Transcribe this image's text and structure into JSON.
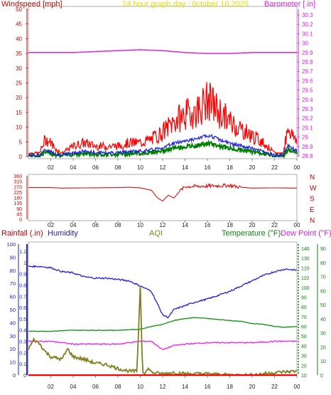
{
  "colors": {
    "wind": "#ff0000",
    "gust_avg": "#2020e0",
    "wind_min": "#008000",
    "barometer": "#e020e0",
    "direction": "#e01010",
    "rain": "#ff0000",
    "humidity": "#2020e0",
    "aqi": "#808020",
    "temperature": "#109010",
    "dewpoint": "#f020f0",
    "title": "#e0e000",
    "axis_blue": "#3030c0"
  },
  "top_panel": {
    "title": "24 hour graph day : 0ctober 10,2025",
    "left_label": "Windspeed [mph]",
    "right_label": "Barometer [.in]",
    "left_ticks": [
      "50",
      "45",
      "40",
      "35",
      "30",
      "25",
      "20",
      "15",
      "10",
      "5",
      "0"
    ],
    "right_ticks": [
      "30.3",
      "30.2",
      "30.1",
      "30",
      "29.9",
      "29.8",
      "29.7",
      "29.6",
      "29.5",
      "29.4",
      "29.3",
      "29.2",
      "29.1",
      "29",
      "28.9",
      "28.8"
    ],
    "x_ticks": [
      "02",
      "04",
      "06",
      "08",
      "10",
      "12",
      "14",
      "16",
      "18",
      "20",
      "22",
      "00"
    ]
  },
  "direction_panel": {
    "left_ticks": [
      "360",
      "315",
      "270",
      "225",
      "180",
      "135",
      "90",
      "45",
      "0"
    ],
    "right_labels": [
      "N",
      "W",
      "S",
      "E",
      "N"
    ],
    "x_ticks": [
      "02",
      "04",
      "06",
      "08",
      "10",
      "12",
      "14",
      "16",
      "18",
      "20",
      "22",
      "00"
    ]
  },
  "bottom_panel": {
    "rain_label": "Rainfall (.in)",
    "humidity_label": "Humidity",
    "aqi_label": "AQI",
    "temperature_label": "Temperature (°F)",
    "dewpoint_label": "Dew Point (°F)",
    "humidity_ticks": [
      "100",
      "90",
      "80",
      "70",
      "60",
      "50",
      "40",
      "30",
      "20",
      "10",
      "0"
    ],
    "rain_ticks": [
      "1.1",
      "1",
      "0.9",
      "0.8",
      "0.7",
      "0.6",
      "0.5",
      "0.4",
      "0.3",
      "0.2",
      "0.1",
      "0"
    ],
    "temp_ticks": [
      "140",
      "130",
      "120",
      "110",
      "100",
      "90",
      "80",
      "70",
      "60",
      "50",
      "40",
      "30",
      "20",
      "10"
    ],
    "dew_ticks": [
      "90",
      "80",
      "70",
      "60",
      "50",
      "40",
      "30",
      "20",
      "10",
      "0"
    ],
    "x_ticks": [
      "02",
      "04",
      "06",
      "08",
      "10",
      "12",
      "14",
      "16",
      "18",
      "20",
      "22",
      "00"
    ]
  },
  "chart_data": [
    {
      "type": "line",
      "x_unit": "hour",
      "x_range": [
        0,
        24
      ],
      "ylim_left": [
        0,
        50
      ],
      "ylim_right": [
        28.8,
        30.3
      ],
      "series": [
        {
          "name": "Windspeed [mph]",
          "axis": "left",
          "x": [
            0,
            1,
            1.5,
            2,
            2.5,
            3,
            4,
            5,
            6,
            7,
            8,
            9,
            10,
            11,
            12,
            13,
            14,
            15,
            16,
            16.5,
            17,
            18,
            19,
            20,
            21,
            22,
            22.8,
            23.2,
            23.6,
            24
          ],
          "y": [
            1,
            1,
            5,
            4,
            2,
            1,
            3,
            4,
            3,
            3,
            3,
            4,
            4,
            5,
            7,
            10,
            12,
            13,
            16,
            15,
            13,
            10,
            8,
            6,
            4,
            1,
            1,
            9,
            6,
            5
          ]
        },
        {
          "name": "Barometer [.in]",
          "axis": "right",
          "x": [
            0,
            2,
            4,
            6,
            8,
            10,
            12,
            14,
            16,
            18,
            20,
            22,
            24
          ],
          "y": [
            29.9,
            29.9,
            29.9,
            29.91,
            29.92,
            29.93,
            29.92,
            29.9,
            29.89,
            29.89,
            29.9,
            29.9,
            29.9
          ]
        }
      ]
    },
    {
      "type": "line",
      "x_unit": "hour",
      "x_range": [
        0,
        24
      ],
      "ylim": [
        0,
        360
      ],
      "series": [
        {
          "name": "Wind direction",
          "x": [
            0,
            2,
            3,
            8,
            9,
            10,
            11,
            11.5,
            12,
            12.5,
            13,
            13.5,
            14,
            16,
            18,
            19,
            20,
            22,
            24
          ],
          "y": [
            262,
            262,
            258,
            262,
            265,
            260,
            240,
            180,
            150,
            200,
            175,
            230,
            270,
            275,
            280,
            265,
            258,
            260,
            258
          ]
        }
      ]
    },
    {
      "type": "line",
      "x_unit": "hour",
      "x_range": [
        0,
        24
      ],
      "ylim_humidity": [
        0,
        100
      ],
      "ylim_rain": [
        0,
        1.1
      ],
      "ylim_temp": [
        10,
        140
      ],
      "ylim_dew": [
        0,
        90
      ],
      "series": [
        {
          "name": "Humidity",
          "axis": "humidity",
          "x": [
            0,
            1,
            2,
            3,
            4,
            5,
            6,
            7,
            8,
            9,
            10,
            11,
            11.5,
            12,
            12.5,
            13,
            14,
            15,
            16,
            17,
            18,
            19,
            20,
            21,
            22,
            23,
            24
          ],
          "y": [
            83,
            83,
            82,
            79,
            78,
            75,
            74,
            74,
            73,
            72,
            68,
            64,
            55,
            46,
            44,
            50,
            53,
            56,
            58,
            61,
            64,
            68,
            72,
            76,
            79,
            81,
            80
          ]
        },
        {
          "name": "Temperature (°F)",
          "axis": "temp",
          "x": [
            0,
            2,
            4,
            6,
            8,
            10,
            11,
            12,
            13,
            14,
            15,
            16,
            17,
            18,
            19,
            20,
            21,
            22,
            23,
            24
          ],
          "y": [
            55,
            55,
            56,
            56,
            56,
            57,
            60,
            62,
            66,
            68,
            69,
            68,
            67,
            66,
            65,
            63,
            62,
            60,
            59,
            60
          ]
        },
        {
          "name": "Dew Point (°F)",
          "axis": "dew",
          "x": [
            0,
            2,
            4,
            6,
            8,
            10,
            11,
            11.5,
            12,
            13,
            14,
            16,
            18,
            20,
            22,
            24
          ],
          "y": [
            24,
            24,
            22,
            22,
            22,
            24,
            24,
            21,
            18,
            21,
            22,
            23,
            23,
            23,
            24,
            24
          ]
        },
        {
          "name": "AQI",
          "axis": "humidity",
          "x": [
            0,
            0.5,
            1,
            1.5,
            2,
            3,
            3.5,
            4,
            5,
            6,
            7,
            8,
            9,
            9.7,
            10,
            10.2,
            10.4,
            10.8,
            11,
            12,
            13,
            14,
            16,
            18,
            20,
            22,
            24
          ],
          "y": [
            20,
            27,
            24,
            18,
            14,
            12,
            20,
            14,
            12,
            9,
            8,
            5,
            3,
            3,
            68,
            3,
            2,
            5,
            2,
            1,
            2,
            1,
            1,
            0,
            0,
            2,
            3
          ]
        },
        {
          "name": "Rainfall (.in)",
          "axis": "rain",
          "x": [
            0,
            24
          ],
          "y": [
            0,
            0
          ]
        }
      ]
    }
  ]
}
